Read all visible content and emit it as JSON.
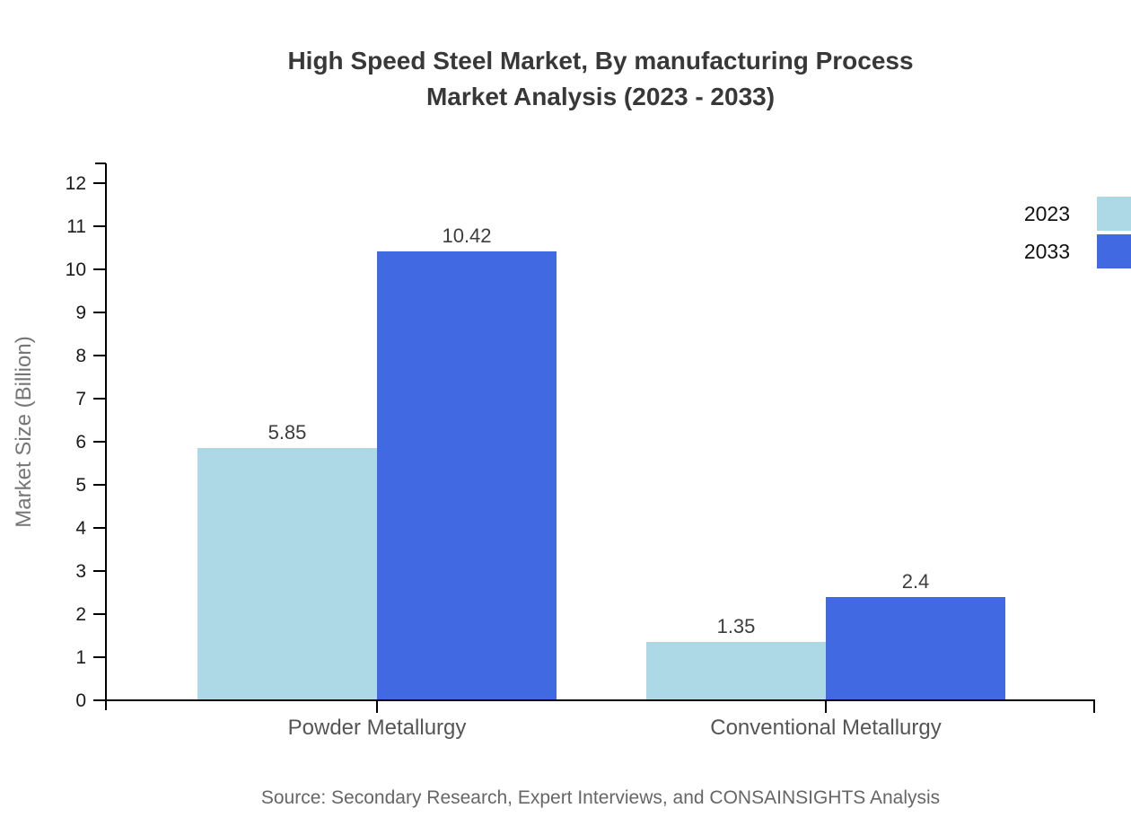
{
  "title": {
    "line1": "High Speed Steel Market, By manufacturing Process",
    "line2": "Market Analysis (2023 - 2033)"
  },
  "source": "Source: Secondary Research, Expert Interviews, and CONSAINSIGHTS Analysis",
  "chart_data": {
    "type": "bar",
    "categories": [
      "Powder Metallurgy",
      "Conventional Metallurgy"
    ],
    "series": [
      {
        "name": "2023",
        "color": "#ADD8E6",
        "values": [
          5.85,
          1.35
        ]
      },
      {
        "name": "2033",
        "color": "#4169E1",
        "values": [
          10.42,
          2.4
        ]
      }
    ],
    "value_labels": [
      "5.85",
      "10.42",
      "1.35",
      "2.4"
    ],
    "title": "High Speed Steel Market, By manufacturing Process Market Analysis (2023 - 2033)",
    "xlabel": "",
    "ylabel": "Market Size (Billion)",
    "ylim": [
      0,
      12
    ],
    "y_ticks": [
      0,
      1,
      2,
      3,
      4,
      5,
      6,
      7,
      8,
      9,
      10,
      11,
      12
    ],
    "grid": false,
    "legend_position": "right-top",
    "value_labels_shown": true
  },
  "colors": {
    "title_text": "#383838",
    "axis_line": "#000000",
    "tick_label": "#1a1a1a",
    "category_label": "#555555",
    "y_axis_title": "#767676",
    "value_label": "#3d3d3d",
    "source_text": "#666666",
    "background": "#ffffff"
  }
}
